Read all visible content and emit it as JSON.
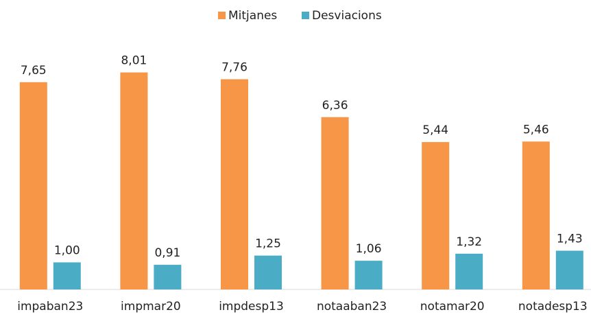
{
  "chart_data": {
    "type": "bar",
    "categories": [
      "impaban23",
      "impmar20",
      "impdesp13",
      "notaaban23",
      "notamar20",
      "notadesp13"
    ],
    "series": [
      {
        "name": "Mitjanes",
        "color": "#f79646",
        "values": [
          7.65,
          8.01,
          7.76,
          6.36,
          5.44,
          5.46
        ],
        "value_labels": [
          "7,65",
          "8,01",
          "7,76",
          "6,36",
          "5,44",
          "5,46"
        ]
      },
      {
        "name": "Desviacions",
        "color": "#4bacc6",
        "values": [
          1.0,
          0.91,
          1.25,
          1.06,
          1.32,
          1.43
        ],
        "value_labels": [
          "1,00",
          "0,91",
          "1,25",
          "1,06",
          "1,32",
          "1,43"
        ]
      }
    ],
    "ylim": [
      0,
      10
    ],
    "legend": "top"
  }
}
